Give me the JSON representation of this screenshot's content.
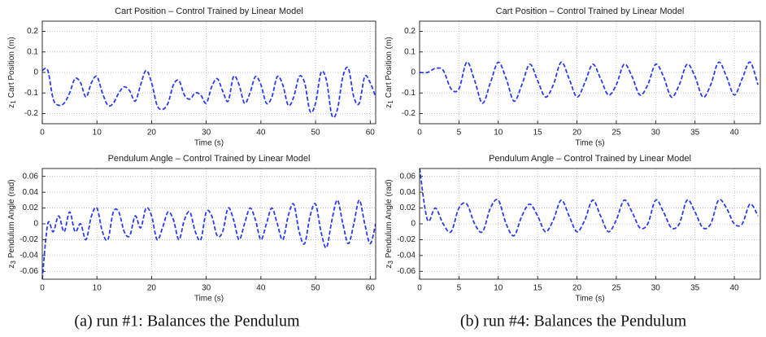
{
  "chart_data": [
    {
      "type": "line",
      "title": "Cart Position – Control Trained by Linear Model",
      "xlabel": "Time (s)",
      "ylabel": {
        "var": "z",
        "sub": "1",
        "text": "Cart Position (m)"
      },
      "xlim": [
        0,
        61
      ],
      "xticks": [
        0,
        10,
        20,
        30,
        40,
        50,
        60
      ],
      "ylim": [
        -0.25,
        0.25
      ],
      "yticks": [
        -0.2,
        -0.1,
        0,
        0.1,
        0.2
      ],
      "grid": true,
      "color": "#2a3cf0",
      "line_style": "dashed",
      "x": [
        0,
        1,
        2,
        3,
        4,
        5,
        6,
        7,
        8,
        9,
        10,
        11,
        12,
        13,
        14,
        15,
        16,
        17,
        18,
        19,
        20,
        21,
        22,
        23,
        24,
        25,
        26,
        27,
        28,
        29,
        30,
        31,
        32,
        33,
        34,
        35,
        36,
        37,
        38,
        39,
        40,
        41,
        42,
        43,
        44,
        45,
        46,
        47,
        48,
        49,
        50,
        51,
        52,
        53,
        54,
        55,
        56,
        57,
        58,
        59,
        60,
        61
      ],
      "values": [
        0.01,
        0.01,
        -0.13,
        -0.16,
        -0.15,
        -0.1,
        -0.03,
        -0.05,
        -0.12,
        -0.05,
        -0.02,
        -0.1,
        -0.16,
        -0.15,
        -0.1,
        -0.07,
        -0.09,
        -0.14,
        -0.06,
        0.01,
        -0.05,
        -0.16,
        -0.18,
        -0.15,
        -0.06,
        -0.04,
        -0.11,
        -0.13,
        -0.1,
        -0.11,
        -0.15,
        -0.07,
        -0.03,
        -0.09,
        -0.14,
        -0.02,
        -0.06,
        -0.15,
        -0.1,
        -0.02,
        -0.06,
        -0.15,
        -0.12,
        -0.02,
        -0.06,
        -0.16,
        -0.12,
        -0.02,
        -0.05,
        -0.19,
        -0.15,
        0.0,
        -0.04,
        -0.21,
        -0.18,
        -0.02,
        0.02,
        -0.12,
        -0.15,
        -0.02,
        -0.05,
        -0.12
      ]
    },
    {
      "type": "line",
      "title": "Cart Position – Control Trained by Linear Model",
      "xlabel": "Time (s)",
      "ylabel": {
        "var": "z",
        "sub": "1",
        "text": "Cart Position (m)"
      },
      "xlim": [
        0,
        43.3
      ],
      "xticks": [
        0,
        5,
        10,
        15,
        20,
        25,
        30,
        35,
        40
      ],
      "ylim": [
        -0.25,
        0.25
      ],
      "yticks": [
        -0.2,
        -0.1,
        0,
        0.1,
        0.2
      ],
      "grid": true,
      "color": "#2a3cf0",
      "line_style": "dashed",
      "x": [
        0,
        1,
        2,
        3,
        4,
        5,
        6,
        7,
        8,
        9,
        10,
        11,
        12,
        13,
        14,
        15,
        16,
        17,
        18,
        19,
        20,
        21,
        22,
        23,
        24,
        25,
        26,
        27,
        28,
        29,
        30,
        31,
        32,
        33,
        34,
        35,
        36,
        37,
        38,
        39,
        40,
        41,
        42,
        43
      ],
      "values": [
        0,
        0,
        0.02,
        0.01,
        -0.08,
        -0.08,
        0.05,
        -0.04,
        -0.15,
        -0.05,
        0.05,
        -0.03,
        -0.14,
        -0.06,
        0.04,
        -0.04,
        -0.12,
        -0.06,
        0.05,
        -0.03,
        -0.12,
        -0.05,
        0.04,
        -0.03,
        -0.11,
        -0.06,
        0.04,
        -0.02,
        -0.11,
        -0.06,
        0.04,
        -0.02,
        -0.12,
        -0.06,
        0.04,
        -0.02,
        -0.12,
        -0.06,
        0.05,
        -0.02,
        -0.11,
        -0.03,
        0.05,
        -0.06
      ]
    },
    {
      "type": "line",
      "title": "Pendulum Angle – Control Trained by Linear Model",
      "xlabel": "Time (s)",
      "ylabel": {
        "var": "z",
        "sub": "3",
        "text": "Pendulum Angle (rad)"
      },
      "xlim": [
        0,
        61
      ],
      "xticks": [
        0,
        10,
        20,
        30,
        40,
        50,
        60
      ],
      "ylim": [
        -0.07,
        0.07
      ],
      "yticks": [
        -0.06,
        -0.04,
        -0.02,
        0,
        0.02,
        0.04,
        0.06
      ],
      "grid": true,
      "color": "#2a3cf0",
      "line_style": "dashed",
      "x": [
        0,
        1,
        2,
        3,
        4,
        5,
        6,
        7,
        8,
        9,
        10,
        11,
        12,
        13,
        14,
        15,
        16,
        17,
        18,
        19,
        20,
        21,
        22,
        23,
        24,
        25,
        26,
        27,
        28,
        29,
        30,
        31,
        32,
        33,
        34,
        35,
        36,
        37,
        38,
        39,
        40,
        41,
        42,
        43,
        44,
        45,
        46,
        47,
        48,
        49,
        50,
        51,
        52,
        53,
        54,
        55,
        56,
        57,
        58,
        59,
        60,
        61
      ],
      "values": [
        -0.07,
        0.0,
        -0.01,
        0.01,
        -0.01,
        0.015,
        -0.01,
        0.0,
        -0.02,
        0.01,
        0.02,
        -0.01,
        -0.02,
        0.015,
        0.015,
        -0.01,
        -0.015,
        0.01,
        -0.005,
        0.02,
        0.01,
        -0.02,
        -0.005,
        0.015,
        0.005,
        -0.02,
        0.005,
        0.015,
        -0.01,
        -0.02,
        0.015,
        0.01,
        -0.015,
        -0.01,
        0.02,
        0.005,
        -0.02,
        0.0,
        0.02,
        0.005,
        -0.02,
        0.0,
        0.02,
        0.0,
        -0.02,
        0.01,
        0.025,
        -0.01,
        -0.025,
        0.01,
        0.025,
        -0.01,
        -0.03,
        0.005,
        0.03,
        0.0,
        -0.025,
        0.0,
        0.03,
        0.0,
        -0.025,
        0.0
      ]
    },
    {
      "type": "line",
      "title": "Pendulum Angle – Control Trained by Linear Model",
      "xlabel": "Time (s)",
      "ylabel": {
        "var": "z",
        "sub": "3",
        "text": "Pendulum Angle (rad)"
      },
      "xlim": [
        0,
        43.3
      ],
      "xticks": [
        0,
        5,
        10,
        15,
        20,
        25,
        30,
        35,
        40
      ],
      "ylim": [
        -0.07,
        0.07
      ],
      "yticks": [
        -0.06,
        -0.04,
        -0.02,
        0,
        0.02,
        0.04,
        0.06
      ],
      "grid": true,
      "color": "#2a3cf0",
      "line_style": "dashed",
      "x": [
        0,
        1,
        2,
        3,
        4,
        5,
        6,
        7,
        8,
        9,
        10,
        11,
        12,
        13,
        14,
        15,
        16,
        17,
        18,
        19,
        20,
        21,
        22,
        23,
        24,
        25,
        26,
        27,
        28,
        29,
        30,
        31,
        32,
        33,
        34,
        35,
        36,
        37,
        38,
        39,
        40,
        41,
        42,
        43
      ],
      "values": [
        0.07,
        0.005,
        0.02,
        0.0,
        -0.01,
        0.02,
        0.025,
        0.0,
        -0.01,
        0.02,
        0.03,
        0.0,
        -0.015,
        0.01,
        0.025,
        0.01,
        -0.01,
        0.005,
        0.03,
        0.01,
        -0.01,
        0.005,
        0.03,
        0.01,
        -0.01,
        0.005,
        0.03,
        0.015,
        -0.005,
        0.0,
        0.03,
        0.015,
        -0.005,
        0.0,
        0.03,
        0.015,
        -0.005,
        0.0,
        0.03,
        0.02,
        0.0,
        0.0,
        0.025,
        0.01
      ]
    }
  ],
  "captions": [
    "(a) run #1: Balances the Pendulum",
    "(b) run #4: Balances the Pendulum"
  ]
}
